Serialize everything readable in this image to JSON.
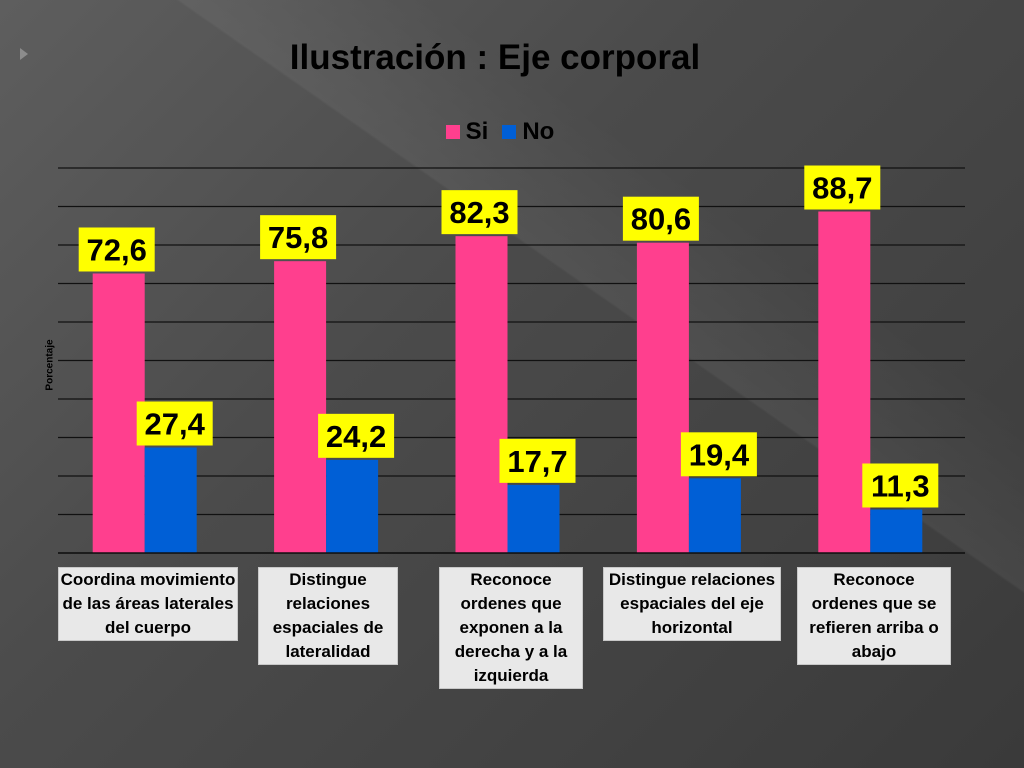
{
  "chart_data": {
    "type": "bar",
    "title": "Ilustración : Eje corporal",
    "ylabel": "Porcentaje",
    "xlabel": "",
    "ylim": [
      0,
      100
    ],
    "grid": true,
    "legend_position": "top-center",
    "categories": [
      "Coordina movimiento de las áreas laterales del cuerpo",
      "Distingue relaciones espaciales de lateralidad",
      "Reconoce ordenes que exponen a la derecha y a la izquierda",
      "Distingue relaciones espaciales del eje horizontal",
      "Reconoce ordenes que se refieren arriba o abajo"
    ],
    "series": [
      {
        "name": "Si",
        "color": "#ff3f8e",
        "values": [
          72.6,
          75.8,
          82.3,
          80.6,
          88.7
        ],
        "labels": [
          "72,6",
          "75,8",
          "82,3",
          "80,6",
          "88,7"
        ]
      },
      {
        "name": "No",
        "color": "#005fd6",
        "values": [
          27.4,
          24.2,
          17.7,
          19.4,
          11.3
        ],
        "labels": [
          "27,4",
          "24,2",
          "17,7",
          "19,4",
          "11,3"
        ]
      }
    ],
    "label_background": "#ffff00"
  }
}
